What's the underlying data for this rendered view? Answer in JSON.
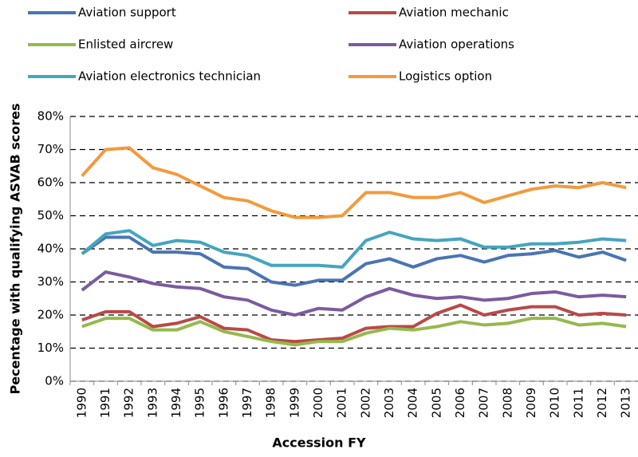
{
  "chart_data": {
    "type": "line",
    "x_label": "Accession FY",
    "y_label": "Pecentage with qualifying ASVAB scores",
    "categories": [
      "1990",
      "1991",
      "1992",
      "1993",
      "1994",
      "1995",
      "1996",
      "1997",
      "1998",
      "1999",
      "2000",
      "2001",
      "2002",
      "2003",
      "2004",
      "2005",
      "2006",
      "2007",
      "2008",
      "2009",
      "2010",
      "2011",
      "2012",
      "2013"
    ],
    "ylim": [
      0,
      80
    ],
    "yticks": [
      {
        "value": 0,
        "label": "0%"
      },
      {
        "value": 10,
        "label": "10%"
      },
      {
        "value": 20,
        "label": "20%"
      },
      {
        "value": 30,
        "label": "30%"
      },
      {
        "value": 40,
        "label": "40%"
      },
      {
        "value": 50,
        "label": "50%"
      },
      {
        "value": 60,
        "label": "60%"
      },
      {
        "value": 70,
        "label": "70%"
      },
      {
        "value": 80,
        "label": "80%"
      }
    ],
    "grid": true,
    "legend": "top",
    "series": [
      {
        "name": "Aviation support",
        "color": "#4a74b4",
        "values": [
          38.5,
          43.5,
          43.5,
          39,
          39,
          38.5,
          34.5,
          34,
          30,
          29,
          30.5,
          30.5,
          35.5,
          37,
          34.5,
          37,
          38,
          36,
          38,
          38.5,
          39.5,
          37.5,
          39,
          36.5
        ]
      },
      {
        "name": "Aviation mechanic",
        "color": "#b84a47",
        "values": [
          18.5,
          21,
          21,
          16.5,
          17.5,
          19.5,
          16,
          15.5,
          12.5,
          12,
          12.5,
          13,
          16,
          16.5,
          16.5,
          20.5,
          23,
          20,
          21.5,
          22.5,
          22.5,
          20,
          20.5,
          20
        ]
      },
      {
        "name": "Enlisted aircrew",
        "color": "#95b94d",
        "values": [
          16.5,
          19,
          19,
          15.5,
          15.5,
          18,
          15,
          13.5,
          12,
          11,
          12,
          12,
          14.5,
          16,
          15.5,
          16.5,
          18,
          17,
          17.5,
          19,
          19,
          17,
          17.5,
          16.5
        ]
      },
      {
        "name": "Aviation operations",
        "color": "#7b5b9e",
        "values": [
          27.5,
          33,
          31.5,
          29.5,
          28.5,
          28,
          25.5,
          24.5,
          21.5,
          20,
          22,
          21.5,
          25.5,
          28,
          26,
          25,
          25.5,
          24.5,
          25,
          26.5,
          27,
          25.5,
          26,
          25.5
        ]
      },
      {
        "name": "Aviation electronics technician",
        "color": "#45a5be",
        "values": [
          38.5,
          44.5,
          45.5,
          41,
          42.5,
          42,
          39,
          38,
          35,
          35,
          35,
          34.5,
          42.5,
          45,
          43,
          42.5,
          43,
          40.5,
          40.5,
          41.5,
          41.5,
          42,
          43,
          42.5
        ]
      },
      {
        "name": "Logistics option",
        "color": "#f39a3c",
        "values": [
          62,
          70,
          70.5,
          64.5,
          62.5,
          59,
          55.5,
          54.5,
          51.5,
          49.5,
          49.5,
          50,
          57,
          57,
          55.5,
          55.5,
          57,
          54,
          56,
          58,
          59,
          58.5,
          60,
          58.5
        ]
      }
    ]
  }
}
